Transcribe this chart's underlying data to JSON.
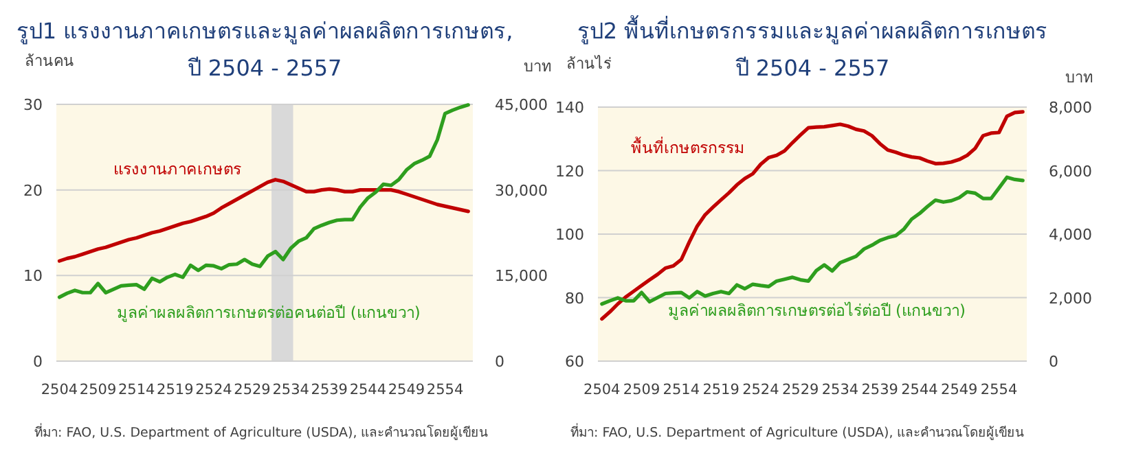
{
  "chart_data": [
    {
      "type": "line",
      "title": "รูป1 แรงงานภาคเกษตรและมูลค่าผลผลิตการเกษตร,",
      "subtitle": "ปี 2504 - 2557",
      "ylabel": "ล้านคน",
      "y2label": "บาท",
      "x": [
        2504,
        2505,
        2506,
        2507,
        2508,
        2509,
        2510,
        2511,
        2512,
        2513,
        2514,
        2515,
        2516,
        2517,
        2518,
        2519,
        2520,
        2521,
        2522,
        2523,
        2524,
        2525,
        2526,
        2527,
        2528,
        2529,
        2530,
        2531,
        2532,
        2533,
        2534,
        2535,
        2536,
        2537,
        2538,
        2539,
        2540,
        2541,
        2542,
        2543,
        2544,
        2545,
        2546,
        2547,
        2548,
        2549,
        2550,
        2551,
        2552,
        2553,
        2554,
        2555,
        2556,
        2557
      ],
      "series": [
        {
          "name": "แรงงานภาคเกษตร",
          "color": "#c00000",
          "values": [
            11.7,
            12.0,
            12.2,
            12.5,
            12.8,
            13.1,
            13.3,
            13.6,
            13.9,
            14.2,
            14.4,
            14.7,
            15.0,
            15.2,
            15.5,
            15.8,
            16.1,
            16.3,
            16.6,
            16.9,
            17.3,
            17.9,
            18.4,
            18.9,
            19.4,
            19.9,
            20.4,
            20.9,
            21.2,
            21.0,
            20.6,
            20.2,
            19.8,
            19.8,
            20.0,
            20.1,
            20.0,
            19.8,
            19.8,
            20.0,
            20.0,
            20.0,
            20.0,
            20.0,
            19.8,
            19.5,
            19.2,
            18.9,
            18.6,
            18.3,
            18.1,
            17.9,
            17.7,
            17.5
          ]
        },
        {
          "name": "มูลค่าผลผลิตการเกษตรต่อคนต่อปี (แกนขวา)",
          "color": "#2e9e1e",
          "axis": "y2",
          "values": [
            11200,
            11900,
            12400,
            12000,
            12000,
            13600,
            12000,
            12600,
            13200,
            13300,
            13400,
            12600,
            14500,
            13900,
            14700,
            15200,
            14700,
            16800,
            15900,
            16800,
            16700,
            16200,
            16900,
            17000,
            17800,
            17000,
            16600,
            18400,
            19200,
            17800,
            19800,
            21000,
            21600,
            23200,
            23800,
            24300,
            24700,
            24800,
            24800,
            27000,
            28600,
            29600,
            31000,
            30800,
            31800,
            33500,
            34600,
            35200,
            35900,
            38800,
            43400,
            44000,
            44500,
            44900
          ]
        }
      ],
      "xlim": [
        2503.6,
        2557.6
      ],
      "xticks": [
        2504,
        2509,
        2514,
        2519,
        2524,
        2529,
        2534,
        2539,
        2544,
        2549,
        2554
      ],
      "ylim": [
        0,
        30
      ],
      "yticks": [
        0,
        10,
        20,
        30
      ],
      "y2lim": [
        0,
        45000
      ],
      "y2ticks": [
        0,
        {
          "value": 15000,
          "label": "15,000"
        },
        {
          "value": 30000,
          "label": "30,000"
        },
        {
          "value": 45000,
          "label": "45,000"
        }
      ],
      "bands": [
        {
          "axis": "x",
          "from": 2531.5,
          "to": 2534.3,
          "color": "#d9d9d9"
        }
      ],
      "grid": "y",
      "annotations": [
        "ที่มา: FAO, U.S. Department of Agriculture (USDA), และคำนวณโดยผู้เขียน"
      ]
    },
    {
      "type": "line",
      "title": "รูป2 พื้นที่เกษตรกรรมและมูลค่าผลผลิตการเกษตร",
      "subtitle": "ปี 2504 - 2557",
      "ylabel": "ล้านไร่",
      "y2label": "บาท",
      "x": [
        2504,
        2505,
        2506,
        2507,
        2508,
        2509,
        2510,
        2511,
        2512,
        2513,
        2514,
        2515,
        2516,
        2517,
        2518,
        2519,
        2520,
        2521,
        2522,
        2523,
        2524,
        2525,
        2526,
        2527,
        2528,
        2529,
        2530,
        2531,
        2532,
        2533,
        2534,
        2535,
        2536,
        2537,
        2538,
        2539,
        2540,
        2541,
        2542,
        2543,
        2544,
        2545,
        2546,
        2547,
        2548,
        2549,
        2550,
        2551,
        2552,
        2553,
        2554,
        2555,
        2556,
        2557
      ],
      "series": [
        {
          "name": "พื้นที่เกษตรกรรม",
          "color": "#c00000",
          "values": [
            73.3,
            75.5,
            78.0,
            80.2,
            82.0,
            83.8,
            85.6,
            87.3,
            89.3,
            90.0,
            92.0,
            97.5,
            102.5,
            106.1,
            108.5,
            110.8,
            113.0,
            115.5,
            117.5,
            119.0,
            122.0,
            124.1,
            124.8,
            126.2,
            128.8,
            131.2,
            133.5,
            133.7,
            133.8,
            134.2,
            134.6,
            134.0,
            133.0,
            132.5,
            131.0,
            128.5,
            126.5,
            125.8,
            124.9,
            124.3,
            124.0,
            123.0,
            122.2,
            122.3,
            122.7,
            123.5,
            124.8,
            127.0,
            131.0,
            131.8,
            132.0,
            137.1,
            138.3,
            138.5
          ]
        },
        {
          "name": "มูลค่าผลผลิตการเกษตรต่อไร่ต่อปี (แกนขวา)",
          "color": "#2e9e1e",
          "axis": "y2",
          "values": [
            1800,
            1900,
            1990,
            1900,
            1900,
            2160,
            1870,
            2000,
            2130,
            2150,
            2160,
            1990,
            2190,
            2050,
            2130,
            2190,
            2130,
            2400,
            2280,
            2420,
            2380,
            2350,
            2520,
            2580,
            2640,
            2560,
            2520,
            2850,
            3030,
            2840,
            3100,
            3200,
            3300,
            3530,
            3650,
            3800,
            3890,
            3950,
            4150,
            4470,
            4650,
            4870,
            5070,
            5010,
            5050,
            5150,
            5330,
            5290,
            5120,
            5120,
            5450,
            5790,
            5720,
            5690
          ]
        }
      ],
      "xlim": [
        2503.5,
        2557.5
      ],
      "xticks": [
        2504,
        2509,
        2514,
        2519,
        2524,
        2529,
        2534,
        2539,
        2544,
        2549,
        2554
      ],
      "ylim": [
        60,
        140
      ],
      "yticks": [
        60,
        80,
        100,
        120,
        140
      ],
      "y2lim": [
        0,
        8000
      ],
      "y2ticks": [
        0,
        {
          "value": 2000,
          "label": "2,000"
        },
        {
          "value": 4000,
          "label": "4,000"
        },
        {
          "value": 6000,
          "label": "6,000"
        },
        {
          "value": 8000,
          "label": "8,000"
        }
      ],
      "grid": "y",
      "annotations": [
        "ที่มา: FAO, U.S. Department of Agriculture (USDA), และคำนวณโดยผู้เขียน"
      ]
    }
  ]
}
